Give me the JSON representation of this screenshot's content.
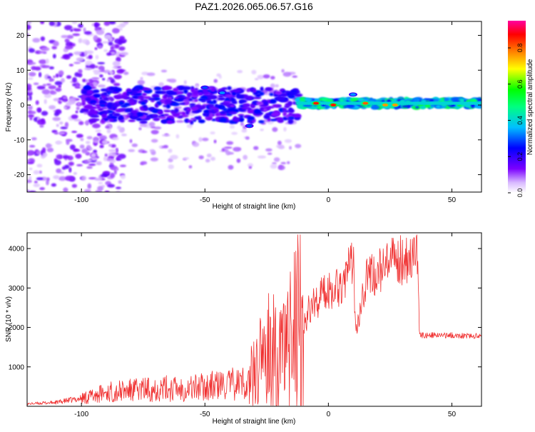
{
  "figure_title": "PAZ1.2026.065.06.57.G16",
  "chart_data": [
    {
      "type": "heatmap",
      "title": "PAZ1.2026.065.06.57.G16",
      "xlabel": "Height of straight line (km)",
      "ylabel": "Frequency (Hz)",
      "xlim": [
        -122,
        62
      ],
      "ylim": [
        -25,
        24
      ],
      "xticks": [
        -100,
        -50,
        0,
        50
      ],
      "yticks": [
        -20,
        -10,
        0,
        10,
        20
      ],
      "xtick_labels": [
        "-100",
        "-50",
        "0",
        "50"
      ],
      "ytick_labels": [
        "-20",
        "-10",
        "0",
        "10",
        "20"
      ],
      "colorbar": {
        "label": "Normalized spectral amplitude",
        "range": [
          0.0,
          0.95
        ],
        "ticks": [
          0.0,
          0.2,
          0.4,
          0.6,
          0.8
        ],
        "tick_labels": [
          "0.0",
          "0.2",
          "0.4",
          "0.6",
          "0.8"
        ],
        "colors": [
          "#ffffff",
          "#7a00ff",
          "#0000ff",
          "#00bfff",
          "#00ff80",
          "#00ff00",
          "#ffff00",
          "#ff8000",
          "#ff0000",
          "#ff00a0"
        ]
      },
      "ridge": {
        "description_free": true,
        "segments": [
          {
            "x": [
              -100,
              -12
            ],
            "f_center": 0,
            "f_spread": 5,
            "amp": 0.22
          },
          {
            "x": [
              -12,
              62
            ],
            "f_center": 0.5,
            "f_spread": 1.2,
            "amp": 0.45
          }
        ],
        "peaks": [
          {
            "x": -5,
            "f": 0.5,
            "amp": 0.9
          },
          {
            "x": 2,
            "f": 0,
            "amp": 0.9
          },
          {
            "x": 15,
            "f": 0.5,
            "amp": 0.85
          },
          {
            "x": 23,
            "f": 0,
            "amp": 0.8
          },
          {
            "x": 27,
            "f": 0,
            "amp": 0.8
          },
          {
            "x": 10,
            "f": 3,
            "amp": 0.35
          },
          {
            "x": -50,
            "f": 5,
            "amp": 0.3
          },
          {
            "x": -43,
            "f": 3.5,
            "amp": 0.35
          },
          {
            "x": -32,
            "f": -6,
            "amp": 0.3
          }
        ]
      }
    },
    {
      "type": "line",
      "xlabel": "Height of straight line (km)",
      "ylabel": "SNR (10 * v/v)",
      "xlim": [
        -122,
        62
      ],
      "ylim": [
        0,
        4400
      ],
      "xticks": [
        -100,
        -50,
        0,
        50
      ],
      "yticks": [
        1000,
        2000,
        3000,
        4000
      ],
      "xtick_labels": [
        "-100",
        "-50",
        "0",
        "50"
      ],
      "ytick_labels": [
        "1000",
        "2000",
        "3000",
        "4000"
      ],
      "color": "#f03030",
      "series": [
        {
          "name": "SNR",
          "x": [
            -122,
            -110,
            -100,
            -90,
            -80,
            -70,
            -60,
            -50,
            -40,
            -30,
            -25,
            -20,
            -15,
            -12,
            -10,
            -8,
            -5,
            0,
            5,
            9,
            10,
            11,
            12,
            15,
            20,
            25,
            30,
            36,
            37,
            40,
            50,
            62
          ],
          "y": [
            60,
            100,
            200,
            350,
            400,
            450,
            450,
            500,
            550,
            650,
            1000,
            1100,
            1200,
            1600,
            2200,
            2400,
            2700,
            2950,
            3100,
            3500,
            3900,
            2000,
            2300,
            3200,
            3400,
            3600,
            3750,
            3850,
            1800,
            1800,
            1800,
            1780
          ]
        }
      ]
    }
  ]
}
